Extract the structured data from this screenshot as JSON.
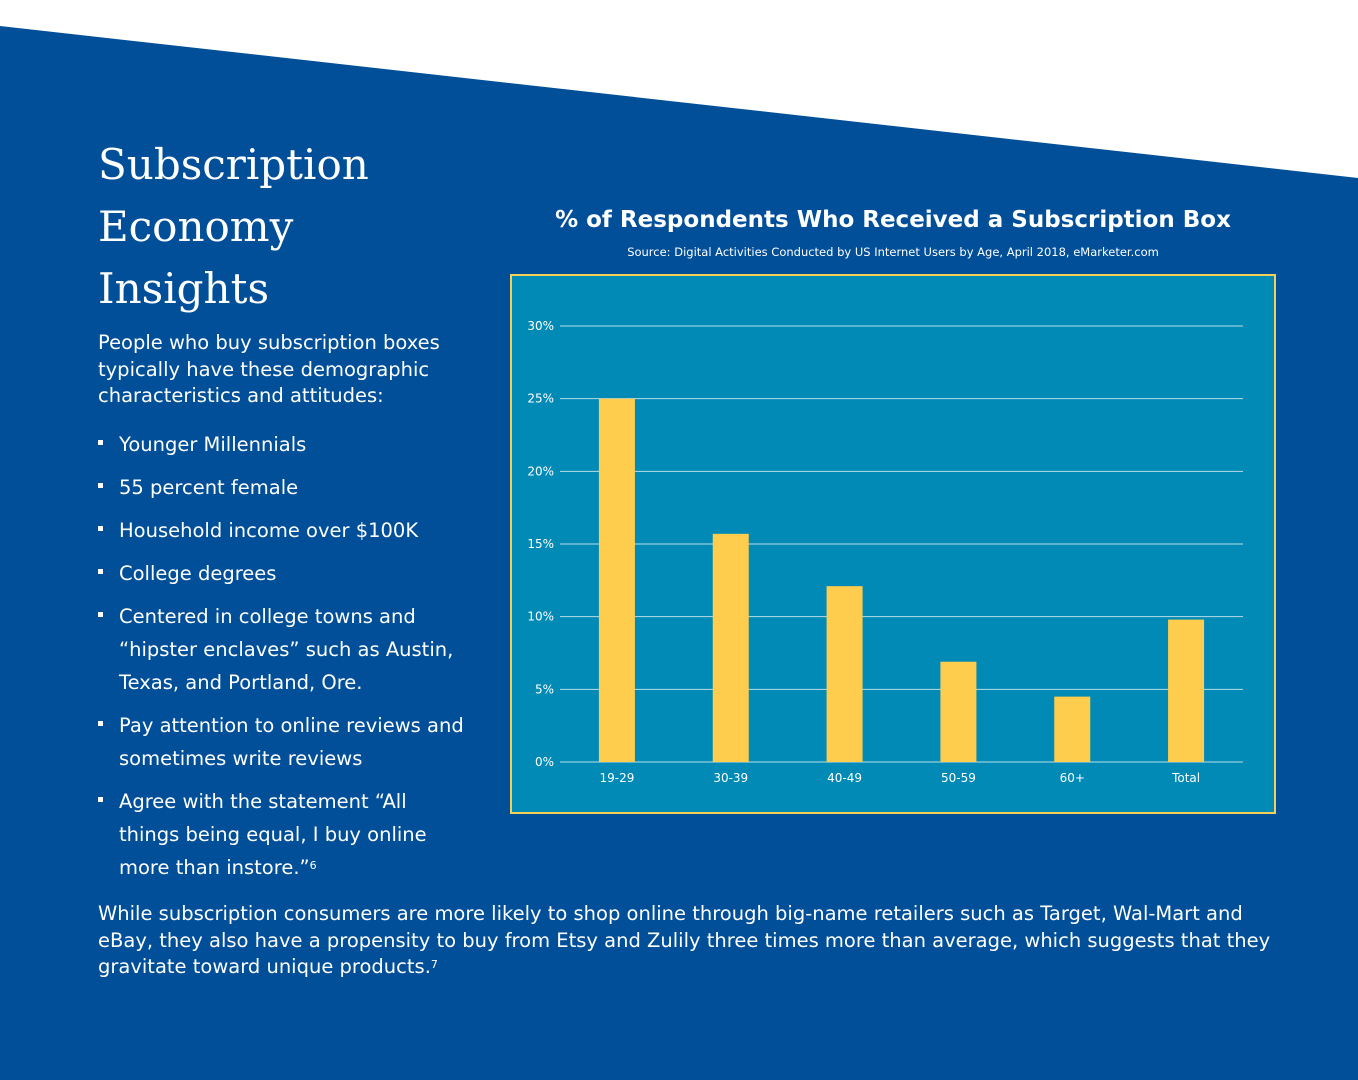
{
  "colors": {
    "page_blue": "#004f98",
    "chart_panel": "#008ab5",
    "chart_border": "#f3cf56",
    "bar": "#fecd4e",
    "text": "#ffffff"
  },
  "heading": {
    "line1": "Subscription",
    "line2": "Economy",
    "line3": "Insights"
  },
  "intro": "People who buy subscription boxes typically have these demographic characteristics and attitudes:",
  "bullets": [
    {
      "text": "Younger Millennials",
      "sup": ""
    },
    {
      "text": "55 percent female",
      "sup": ""
    },
    {
      "text": "Household income over $100K",
      "sup": ""
    },
    {
      "text": "College degrees",
      "sup": ""
    },
    {
      "text": "Centered in college towns and “hipster enclaves” such as Austin, Texas, and Portland, Ore.",
      "sup": ""
    },
    {
      "text": "Pay attention to online reviews and sometimes write reviews",
      "sup": ""
    },
    {
      "text": "Agree with the statement “All things being equal, I buy online more than instore.”",
      "sup": "6"
    }
  ],
  "closing": {
    "text": "While subscription consumers are more likely to shop online through big-name retailers such as Target, Wal-Mart and eBay, they also have a propensity to buy from Etsy and Zulily three times more than average, which suggests that they gravitate toward unique products.",
    "sup": "7"
  },
  "chart_data": {
    "type": "bar",
    "title": "% of Respondents Who Received a Subscription Box",
    "subtitle": "Source: Digital Activities Conducted by US Internet Users by Age, April 2018, eMarketer.com",
    "categories": [
      "19-29",
      "30-39",
      "40-49",
      "50-59",
      "60+",
      "Total"
    ],
    "values": [
      25,
      15.7,
      12.1,
      6.9,
      4.5,
      9.8
    ],
    "ylim": [
      0,
      30
    ],
    "yticks": [
      0,
      5,
      10,
      15,
      20,
      25,
      30
    ],
    "ytick_labels": [
      "0%",
      "5%",
      "10%",
      "15%",
      "20%",
      "25%",
      "30%"
    ],
    "grid": true,
    "xlabel": "",
    "ylabel": ""
  }
}
